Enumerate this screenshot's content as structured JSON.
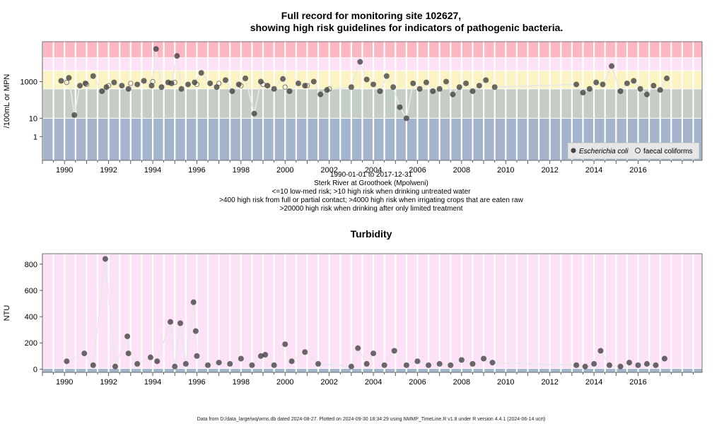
{
  "chart_data": [
    {
      "type": "scatter",
      "title": "Full record for monitoring site 102627,",
      "subtitle": "showing high risk guidelines for indicators of pathogenic bacteria.",
      "ylabel": "/100mL or MPN",
      "y_scale": "log10",
      "ylim": [
        0.05,
        150000
      ],
      "xlim": [
        1989,
        2018.9
      ],
      "x_ticks": [
        1990,
        1992,
        1994,
        1996,
        1998,
        2000,
        2002,
        2004,
        2006,
        2008,
        2010,
        2012,
        2014,
        2016
      ],
      "x_tick_labels": [
        "1990",
        "1992",
        "1994",
        "1996",
        "1998",
        "2000",
        "2002",
        "2004",
        "2006",
        "2008",
        "2010",
        "2012",
        "2014",
        "2016"
      ],
      "y_ticks": [
        1,
        10,
        1000
      ],
      "y_tick_labels": [
        "1",
        "10",
        "1000"
      ],
      "risk_bands": [
        {
          "from": 0.05,
          "to": 10,
          "color": "#a3b4cc"
        },
        {
          "from": 10,
          "to": 400,
          "color": "#c5cec5"
        },
        {
          "from": 400,
          "to": 4000,
          "color": "#fbf3c2"
        },
        {
          "from": 4000,
          "to": 20000,
          "color": "#fde1f6"
        },
        {
          "from": 20000,
          "to": 150000,
          "color": "#fbb8c4"
        }
      ],
      "legend": {
        "position": "bottom-right",
        "entries": [
          {
            "label": "Escherichia coli",
            "marker": "filled-circle"
          },
          {
            "label": "faecal coliforms",
            "marker": "open-circle"
          }
        ]
      },
      "below_axis_text": [
        "1990-01-01 to 2017-12-31",
        "Sterk River at Groothoek (Mpolweni)",
        "<=10 low-med risk; >10 high risk when drinking untreated water",
        ">400 high risk from full or partial contact; >4000 high risk when irrigating crops that are eaten raw",
        ">20000 high risk when drinking after only limited treatment"
      ],
      "series": [
        {
          "name": "Escherichia coli",
          "x": [
            1989.85,
            1990.2,
            1990.45,
            1990.7,
            1990.95,
            1991.3,
            1991.7,
            1991.9,
            1992.25,
            1992.6,
            1992.9,
            1993.3,
            1993.6,
            1993.95,
            1994.15,
            1994.4,
            1994.7,
            1994.85,
            1995.1,
            1995.3,
            1995.6,
            1995.9,
            1996.2,
            1996.6,
            1996.9,
            1997.3,
            1997.6,
            1997.9,
            1998.2,
            1998.6,
            1998.9,
            1999.2,
            1999.5,
            1999.9,
            2000.2,
            2000.6,
            2000.9,
            2001.3,
            2001.6,
            2001.9,
            2003.0,
            2003.4,
            2003.7,
            2004.0,
            2004.3,
            2004.6,
            2004.9,
            2005.2,
            2005.5,
            2005.8,
            2006.1,
            2006.4,
            2006.7,
            2007.0,
            2007.3,
            2007.6,
            2007.9,
            2008.2,
            2008.5,
            2008.8,
            2009.1,
            2009.5,
            2013.2,
            2013.5,
            2013.8,
            2014.1,
            2014.4,
            2014.8,
            2015.2,
            2015.5,
            2015.8,
            2016.1,
            2016.4,
            2016.7,
            2017.0,
            2017.3
          ],
          "y": [
            1100,
            1600,
            15,
            600,
            800,
            2000,
            300,
            500,
            900,
            600,
            400,
            700,
            1100,
            600,
            60000,
            500,
            900,
            800,
            25000,
            400,
            700,
            900,
            3000,
            800,
            500,
            1200,
            300,
            700,
            1500,
            18,
            1000,
            600,
            400,
            1400,
            300,
            800,
            600,
            1000,
            200,
            350,
            500,
            12000,
            1300,
            700,
            300,
            2000,
            500,
            40,
            10,
            800,
            400,
            900,
            300,
            400,
            1000,
            200,
            500,
            800,
            300,
            600,
            1200,
            500,
            700,
            250,
            400,
            900,
            700,
            7000,
            300,
            800,
            1100,
            400,
            200,
            600,
            350,
            1500
          ]
        },
        {
          "name": "faecal coliforms",
          "x": [
            1990.1,
            1991.0,
            1992.0,
            1993.0,
            1994.0,
            1995.0,
            1996.0,
            1997.0,
            1998.0,
            1999.0,
            2000.0,
            2001.0,
            2002.0
          ],
          "y": [
            900,
            700,
            600,
            800,
            1000,
            900,
            700,
            800,
            600,
            700,
            500,
            600,
            400
          ]
        }
      ]
    },
    {
      "type": "scatter",
      "title": "Turbidity",
      "ylabel": "NTU",
      "xlim": [
        1989,
        2018.9
      ],
      "ylim": [
        -25,
        880
      ],
      "x_ticks": [
        1990,
        1992,
        1994,
        1996,
        1998,
        2000,
        2002,
        2004,
        2006,
        2008,
        2010,
        2012,
        2014,
        2016
      ],
      "x_tick_labels": [
        "1990",
        "1992",
        "1994",
        "1996",
        "1998",
        "2000",
        "2002",
        "2004",
        "2006",
        "2008",
        "2010",
        "2012",
        "2014",
        "2016"
      ],
      "y_ticks": [
        0,
        200,
        400,
        600,
        800
      ],
      "y_tick_labels": [
        "0",
        "200",
        "400",
        "600",
        "800"
      ],
      "bands": [
        {
          "from": -25,
          "to": 5,
          "color": "#a3b4cc"
        },
        {
          "from": 5,
          "to": 880,
          "color": "#fde1f6"
        }
      ],
      "series": [
        {
          "name": "Turbidity",
          "x": [
            1990.1,
            1990.9,
            1991.3,
            1991.85,
            1992.3,
            1992.85,
            1992.9,
            1993.3,
            1993.9,
            1994.2,
            1994.8,
            1995.0,
            1995.25,
            1995.5,
            1995.85,
            1995.95,
            1996.0,
            1996.5,
            1997.0,
            1997.5,
            1998.0,
            1998.5,
            1998.9,
            1999.1,
            1999.5,
            2000.0,
            2000.3,
            2000.9,
            2001.5,
            2003.0,
            2003.3,
            2003.7,
            2004.0,
            2004.5,
            2004.95,
            2005.5,
            2006.0,
            2006.5,
            2007.0,
            2007.5,
            2008.0,
            2008.5,
            2009.0,
            2009.4,
            2013.2,
            2013.6,
            2014.0,
            2014.3,
            2014.7,
            2015.2,
            2015.6,
            2016.0,
            2016.4,
            2016.8,
            2017.2
          ],
          "y": [
            60,
            120,
            30,
            840,
            20,
            250,
            120,
            40,
            90,
            60,
            360,
            20,
            350,
            40,
            510,
            290,
            100,
            30,
            50,
            40,
            80,
            30,
            100,
            110,
            30,
            190,
            60,
            130,
            40,
            20,
            160,
            40,
            120,
            30,
            140,
            30,
            60,
            30,
            40,
            30,
            70,
            40,
            80,
            50,
            30,
            20,
            40,
            140,
            30,
            20,
            50,
            30,
            40,
            30,
            80
          ]
        }
      ]
    }
  ],
  "footer": "Data from D:/data_large/wq/wms.db dated 2024-08-27. Plotted on 2024-09-30 18:34:29 using NMMP_TimeLine.R v1.8 under R version 4.4.1 (2024-06-14 ucrt)"
}
